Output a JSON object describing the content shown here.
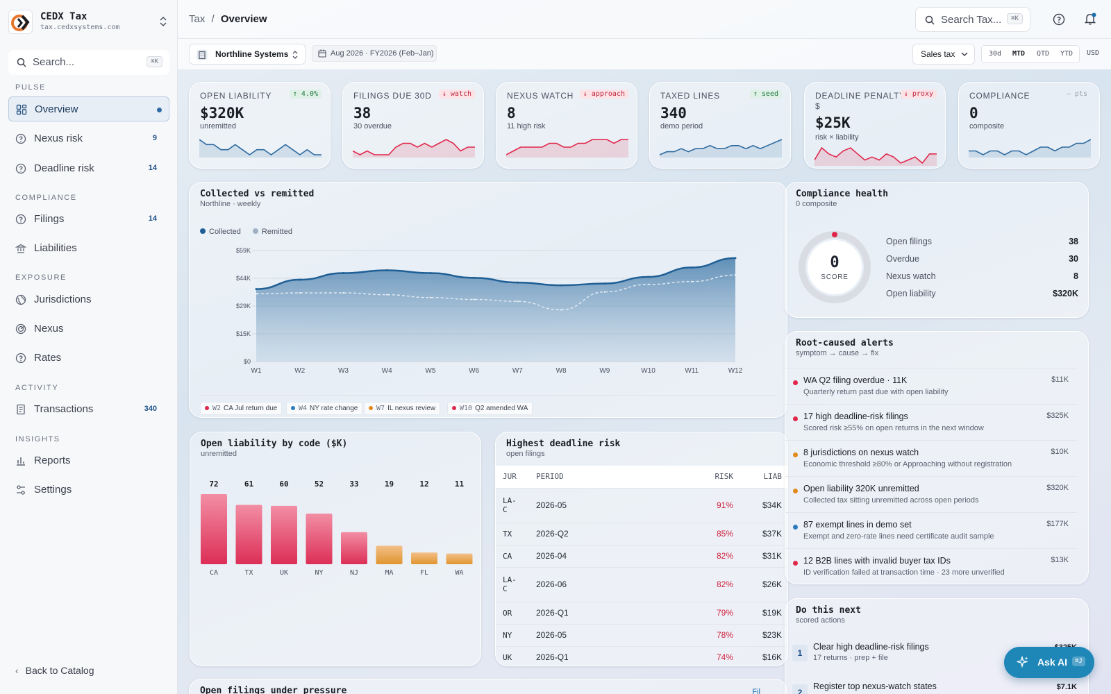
{
  "brand": {
    "name": "CEDX Tax",
    "domain": "tax.cedxsystems.com"
  },
  "sidebar": {
    "search_placeholder": "Search...",
    "search_kbd": "⌘K",
    "sections": {
      "pulse": "PULSE",
      "compliance": "COMPLIANCE",
      "exposure": "EXPOSURE",
      "activity": "ACTIVITY",
      "insights": "INSIGHTS"
    },
    "items": [
      {
        "label": "Overview"
      },
      {
        "label": "Nexus risk",
        "count": "9"
      },
      {
        "label": "Deadline risk",
        "count": "14"
      },
      {
        "label": "Filings",
        "count": "14"
      },
      {
        "label": "Liabilities"
      },
      {
        "label": "Jurisdictions"
      },
      {
        "label": "Nexus"
      },
      {
        "label": "Rates"
      },
      {
        "label": "Transactions",
        "count": "340"
      },
      {
        "label": "Reports"
      },
      {
        "label": "Settings"
      }
    ],
    "back": "Back to Catalog"
  },
  "header": {
    "crumb_root": "Tax",
    "crumb_sep": "/",
    "crumb_page": "Overview",
    "search_placeholder": "Search Tax...",
    "search_kbd": "⌘K"
  },
  "filters": {
    "entity": "Northline Systems",
    "period": "Aug 2026 · FY2026 (Feb–Jan)",
    "tax_type": "Sales tax",
    "ranges": [
      "30d",
      "MTD",
      "QTD",
      "YTD"
    ],
    "active_range": "MTD",
    "currency": "USD"
  },
  "kpis": [
    {
      "label": "OPEN LIABILITY",
      "value": "$320K",
      "sub": "unremitted",
      "badge": "↑ 4.0%",
      "tone": "g",
      "spark": [
        6,
        5,
        5,
        4,
        4,
        5,
        4,
        3,
        4,
        4,
        3,
        4,
        5,
        4,
        3,
        4,
        3,
        3
      ],
      "color": "#2d6a9f"
    },
    {
      "label": "FILINGS DUE 30D",
      "value": "38",
      "sub": "30 overdue",
      "badge": "↓ watch",
      "tone": "r",
      "spark": [
        4,
        3,
        4,
        3,
        3,
        3,
        5,
        6,
        6,
        5,
        6,
        5,
        6,
        7,
        6,
        4,
        5,
        5
      ],
      "color": "#e0264a"
    },
    {
      "label": "NEXUS WATCH",
      "value": "8",
      "sub": "11 high risk",
      "badge": "↓ approach",
      "tone": "r",
      "spark": [
        2,
        3,
        4,
        4,
        4,
        4,
        5,
        5,
        4,
        4,
        5,
        5,
        6,
        6,
        6,
        5,
        6,
        6
      ],
      "color": "#e0264a"
    },
    {
      "label": "TAXED LINES",
      "value": "340",
      "sub": "demo period",
      "badge": "↑ seed",
      "tone": "g",
      "spark": [
        2,
        3,
        3,
        4,
        3,
        4,
        4,
        5,
        4,
        4,
        5,
        5,
        4,
        5,
        4,
        5,
        6,
        7
      ],
      "color": "#2d6a9f"
    },
    {
      "label": "DEADLINE PENALTY",
      "label2": "$",
      "value": "$25K",
      "sub": "risk × liability",
      "badge": "↓ proxy",
      "tone": "r",
      "spark": [
        3,
        7,
        5,
        4,
        6,
        7,
        5,
        3,
        4,
        3,
        5,
        4,
        2,
        3,
        4,
        2,
        5,
        5
      ],
      "color": "#e0264a"
    },
    {
      "label": "COMPLIANCE",
      "value": "0",
      "sub": "composite",
      "badge": "— pts",
      "tone": "n",
      "spark": [
        4,
        4,
        3,
        4,
        4,
        3,
        4,
        4,
        3,
        4,
        5,
        5,
        4,
        5,
        5,
        6,
        6,
        7
      ],
      "color": "#2d6a9f"
    }
  ],
  "collected": {
    "title": "Collected vs remitted",
    "sub": "Northline · weekly",
    "legend": [
      "Collected",
      "Remitted"
    ],
    "events": [
      {
        "wk": "W2",
        "text": "CA Jul return due",
        "color": "#e0264a"
      },
      {
        "wk": "W4",
        "text": "NY rate change",
        "color": "#2a7bc0"
      },
      {
        "wk": "W7",
        "text": "IL nexus review",
        "color": "#e38a1c"
      },
      {
        "wk": "W10",
        "text": "Q2 amended WA",
        "color": "#e0264a"
      }
    ]
  },
  "chart_data": [
    {
      "type": "area",
      "title": "Collected vs remitted",
      "x": [
        "W1",
        "W2",
        "W3",
        "W4",
        "W5",
        "W6",
        "W7",
        "W8",
        "W9",
        "W10",
        "W11",
        "W12"
      ],
      "yticks": [
        "$0",
        "$15K",
        "$29K",
        "$44K",
        "$59K"
      ],
      "ylim": [
        0,
        59000
      ],
      "series": [
        {
          "name": "Collected",
          "values": [
            38500,
            43500,
            47000,
            48500,
            47000,
            44500,
            42000,
            40500,
            41500,
            45000,
            50000,
            55000
          ]
        },
        {
          "name": "Remitted",
          "values": [
            36000,
            36500,
            36500,
            35500,
            34000,
            33000,
            32000,
            27500,
            37000,
            41000,
            42500,
            46000
          ]
        }
      ]
    },
    {
      "type": "bar",
      "title": "Open liability by code ($K)",
      "categories": [
        "CA",
        "TX",
        "UK",
        "NY",
        "NJ",
        "MA",
        "FL",
        "WA"
      ],
      "values": [
        72,
        61,
        60,
        52,
        33,
        19,
        12,
        11
      ],
      "ylim": [
        0,
        80
      ]
    }
  ],
  "liability": {
    "title": "Open liability by code ($K)",
    "sub": "unremitted",
    "colors": [
      "#e0264a",
      "#e0264a",
      "#e0264a",
      "#e0264a",
      "#e0264a",
      "#e38a1c",
      "#e38a1c",
      "#e38a1c"
    ]
  },
  "deadline": {
    "title": "Highest deadline risk",
    "sub": "open filings",
    "headers": [
      "JUR",
      "PERIOD",
      "RISK",
      "LIAB"
    ],
    "rows": [
      [
        "LA-C",
        "2026-05",
        "91%",
        "$34K"
      ],
      [
        "TX",
        "2026-Q2",
        "85%",
        "$37K"
      ],
      [
        "CA",
        "2026-04",
        "82%",
        "$31K"
      ],
      [
        "LA-C",
        "2026-06",
        "82%",
        "$26K"
      ],
      [
        "OR",
        "2026-Q1",
        "79%",
        "$19K"
      ],
      [
        "NY",
        "2026-05",
        "78%",
        "$23K"
      ],
      [
        "UK",
        "2026-Q1",
        "74%",
        "$16K"
      ]
    ]
  },
  "health": {
    "title": "Compliance health",
    "sub": "0 composite",
    "score": "0",
    "score_label": "SCORE",
    "stats": [
      {
        "k": "Open filings",
        "v": "38"
      },
      {
        "k": "Overdue",
        "v": "30"
      },
      {
        "k": "Nexus watch",
        "v": "8"
      },
      {
        "k": "Open liability",
        "v": "$320K"
      }
    ]
  },
  "alerts": {
    "title": "Root-caused alerts",
    "sub": "symptom → cause → fix",
    "items": [
      {
        "t": "WA Q2 filing overdue · 11K",
        "s": "Quarterly return past due with open liability",
        "a": "$11K",
        "c": "#e0264a"
      },
      {
        "t": "17 high deadline-risk filings",
        "s": "Scored risk ≥55% on open returns in the next window",
        "a": "$325K",
        "c": "#e0264a"
      },
      {
        "t": "8 jurisdictions on nexus watch",
        "s": "Economic threshold ≥80% or Approaching without registration",
        "a": "$10K",
        "c": "#e38a1c"
      },
      {
        "t": "Open liability 320K unremitted",
        "s": "Collected tax sitting unremitted across open periods",
        "a": "$320K",
        "c": "#e38a1c"
      },
      {
        "t": "87 exempt lines in demo set",
        "s": "Exempt and zero-rate lines need certificate audit sample",
        "a": "$177K",
        "c": "#2a7bc0"
      },
      {
        "t": "12 B2B lines with invalid buyer tax IDs",
        "s": "ID verification failed at transaction time · 23 more unverified",
        "a": "$13K",
        "c": "#e0264a"
      }
    ]
  },
  "next": {
    "title": "Do this next",
    "sub": "scored actions",
    "items": [
      {
        "n": "1",
        "t": "Clear high deadline-risk filings",
        "s": "17 returns · prep + file",
        "a": "$325K"
      },
      {
        "n": "2",
        "t": "Register top nexus-watch states",
        "s": "",
        "a": "$7.1K"
      }
    ]
  },
  "bottom": {
    "title": "Open filings under pressure",
    "link": "Fil"
  },
  "askai": {
    "label": "Ask AI",
    "kbd": "⌘J"
  }
}
